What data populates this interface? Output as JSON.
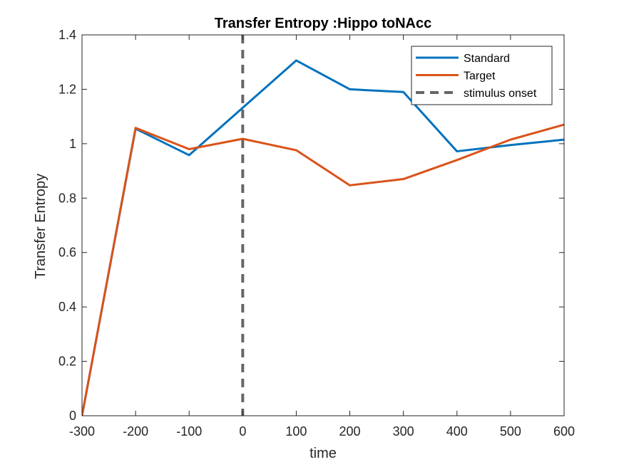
{
  "chart_data": {
    "type": "line",
    "title": "Transfer Entropy :Hippo toNAcc",
    "xlabel": "time",
    "ylabel": "Transfer Entropy",
    "xlim": [
      -300,
      600
    ],
    "ylim": [
      0,
      1.4
    ],
    "xticks": [
      -300,
      -200,
      -100,
      0,
      100,
      200,
      300,
      400,
      500,
      600
    ],
    "xtick_labels": [
      "-300",
      "-200",
      "-100",
      "0",
      "100",
      "200",
      "300",
      "400",
      "500",
      "600"
    ],
    "yticks": [
      0,
      0.2,
      0.4,
      0.6,
      0.8,
      1.0,
      1.2,
      1.4
    ],
    "ytick_labels": [
      "0",
      "0.2",
      "0.4",
      "0.6",
      "0.8",
      "1",
      "1.2",
      "1.4"
    ],
    "x": [
      -300,
      -200,
      -100,
      0,
      100,
      200,
      300,
      400,
      500,
      600
    ],
    "series": [
      {
        "name": "Standard",
        "color": "#0072BD",
        "values": [
          0,
          1.055,
          0.958,
          1.132,
          1.306,
          1.2,
          1.19,
          0.972,
          0.995,
          1.015
        ]
      },
      {
        "name": "Target",
        "color": "#D95319",
        "values": [
          0,
          1.058,
          0.98,
          1.018,
          0.976,
          0.847,
          0.87,
          0.94,
          1.015,
          1.07
        ]
      }
    ],
    "vline": {
      "name": "stimulus onset",
      "x": 0,
      "color": "#666666",
      "style": "dashed"
    },
    "legend": {
      "placement": "top-right",
      "entries": [
        "Standard",
        "Target",
        "stimulus onset"
      ]
    },
    "grid": false
  }
}
